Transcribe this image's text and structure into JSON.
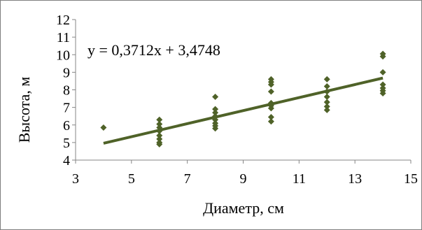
{
  "chart_data": {
    "type": "scatter",
    "xlabel": "Диаметр, см",
    "ylabel": "Высота, м",
    "xlim": [
      3,
      15
    ],
    "ylim": [
      4,
      12
    ],
    "x_ticks": [
      "3",
      "5",
      "7",
      "9",
      "11",
      "13",
      "15"
    ],
    "y_ticks": [
      "4",
      "5",
      "6",
      "7",
      "8",
      "9",
      "10",
      "11",
      "12"
    ],
    "grid": false,
    "marker": "diamond",
    "point_color": "#4f6228",
    "trendline": {
      "equation_label": "y = 0,3712x + 3,4748",
      "slope": 0.3712,
      "intercept": 3.4748,
      "x_range": [
        4,
        14
      ],
      "color": "#4f6228"
    },
    "points": [
      {
        "x": 4,
        "y": 5.85
      },
      {
        "x": 6,
        "y": 6.3
      },
      {
        "x": 6,
        "y": 6.05
      },
      {
        "x": 6,
        "y": 5.85
      },
      {
        "x": 6,
        "y": 5.65
      },
      {
        "x": 6,
        "y": 5.4
      },
      {
        "x": 6,
        "y": 5.2
      },
      {
        "x": 6,
        "y": 5.0
      },
      {
        "x": 6,
        "y": 4.9
      },
      {
        "x": 8,
        "y": 7.6
      },
      {
        "x": 8,
        "y": 6.9
      },
      {
        "x": 8,
        "y": 6.7
      },
      {
        "x": 8,
        "y": 6.5
      },
      {
        "x": 8,
        "y": 6.3
      },
      {
        "x": 8,
        "y": 6.1
      },
      {
        "x": 8,
        "y": 5.95
      },
      {
        "x": 8,
        "y": 5.8
      },
      {
        "x": 10,
        "y": 8.6
      },
      {
        "x": 10,
        "y": 8.45
      },
      {
        "x": 10,
        "y": 8.3
      },
      {
        "x": 10,
        "y": 7.9
      },
      {
        "x": 10,
        "y": 7.25
      },
      {
        "x": 10,
        "y": 7.1
      },
      {
        "x": 10,
        "y": 6.95
      },
      {
        "x": 10,
        "y": 6.45
      },
      {
        "x": 10,
        "y": 6.2
      },
      {
        "x": 12,
        "y": 8.6
      },
      {
        "x": 12,
        "y": 8.2
      },
      {
        "x": 12,
        "y": 7.9
      },
      {
        "x": 12,
        "y": 7.6
      },
      {
        "x": 12,
        "y": 7.3
      },
      {
        "x": 12,
        "y": 7.05
      },
      {
        "x": 12,
        "y": 6.85
      },
      {
        "x": 14,
        "y": 10.05
      },
      {
        "x": 14,
        "y": 9.9
      },
      {
        "x": 14,
        "y": 9.0
      },
      {
        "x": 14,
        "y": 8.3
      },
      {
        "x": 14,
        "y": 8.1
      },
      {
        "x": 14,
        "y": 7.95
      },
      {
        "x": 14,
        "y": 7.8
      }
    ]
  }
}
